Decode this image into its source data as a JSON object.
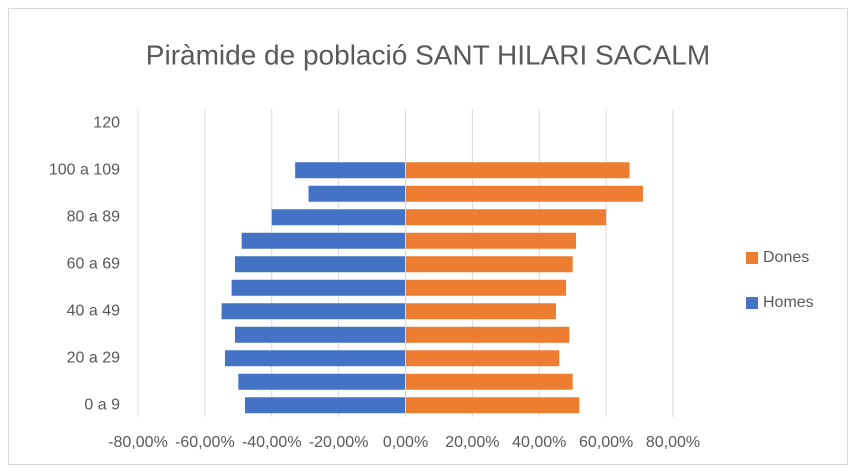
{
  "chart_data": {
    "type": "bar",
    "orientation": "horizontal",
    "title": "Piràmide de població SANT HILARI SACALM",
    "categories": [
      "0 a 9",
      null,
      "20 a 29",
      null,
      "40 a 49",
      null,
      "60 a 69",
      null,
      "80 a 89",
      null,
      "100 a 109",
      null,
      "120"
    ],
    "series": [
      {
        "name": "Dones",
        "color": "#ed7d31",
        "values": [
          52,
          50,
          46,
          49,
          45,
          48,
          50,
          51,
          60,
          71,
          67,
          0,
          0
        ]
      },
      {
        "name": "Homes",
        "color": "#4472c4",
        "values": [
          -48,
          -50,
          -54,
          -51,
          -55,
          -52,
          -51,
          -49,
          -40,
          -29,
          -33,
          0,
          0
        ]
      }
    ],
    "xlim": [
      -80,
      80
    ],
    "xticks": [
      {
        "value": -80,
        "label": "-80,00%"
      },
      {
        "value": -60,
        "label": "-60,00%"
      },
      {
        "value": -40,
        "label": "-40,00%"
      },
      {
        "value": -20,
        "label": "-20,00%"
      },
      {
        "value": 0,
        "label": "0,00%"
      },
      {
        "value": 20,
        "label": "20,00%"
      },
      {
        "value": 40,
        "label": "40,00%"
      },
      {
        "value": 60,
        "label": "60,00%"
      },
      {
        "value": 80,
        "label": "80,00%"
      }
    ],
    "grid": true,
    "legend": "right"
  }
}
